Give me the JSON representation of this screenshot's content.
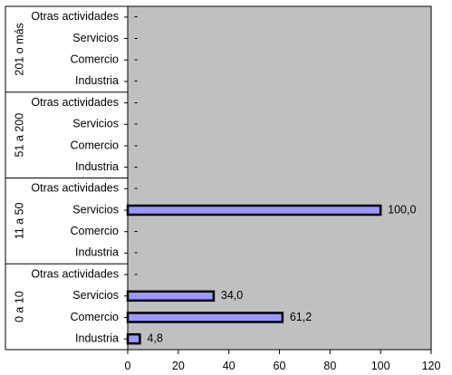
{
  "chart_data": {
    "type": "bar",
    "orientation": "horizontal",
    "title": "",
    "xlabel": "",
    "ylabel": "",
    "xlim": [
      0,
      120
    ],
    "x_ticks": [
      "0",
      "20",
      "40",
      "60",
      "80",
      "100",
      "120"
    ],
    "grid": false,
    "legend": "none",
    "colors": {
      "plot_background": "#c0c0c0",
      "bar_fill": "#9999ff",
      "bar_stroke": "#000000"
    },
    "groups": [
      {
        "label": "201 o más",
        "categories": [
          "Otras actividades",
          "Servicios",
          "Comercio",
          "Industria"
        ],
        "values": [
          null,
          null,
          null,
          null
        ],
        "labels": [
          "-",
          "-",
          "-",
          "-"
        ]
      },
      {
        "label": "51 a 200",
        "categories": [
          "Otras actividades",
          "Servicios",
          "Comercio",
          "Industria"
        ],
        "values": [
          null,
          null,
          null,
          null
        ],
        "labels": [
          "-",
          "-",
          "-",
          "-"
        ]
      },
      {
        "label": "11 a 50",
        "categories": [
          "Otras actividades",
          "Servicios",
          "Comercio",
          "Industria"
        ],
        "values": [
          null,
          100.0,
          null,
          null
        ],
        "labels": [
          "-",
          "100,0",
          "-",
          "-"
        ]
      },
      {
        "label": "0 a 10",
        "categories": [
          "Otras actividades",
          "Servicios",
          "Comercio",
          "Industria"
        ],
        "values": [
          null,
          34.0,
          61.2,
          4.8
        ],
        "labels": [
          "-",
          "34,0",
          "61,2",
          "4,8"
        ]
      }
    ]
  }
}
